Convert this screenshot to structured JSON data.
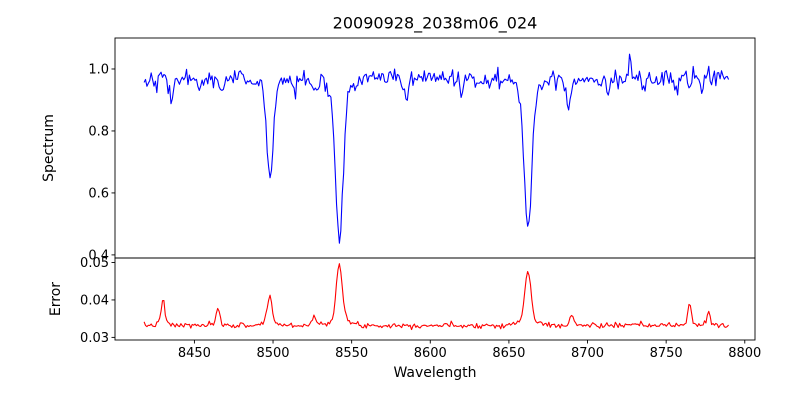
{
  "figure": {
    "title": "20090928_2038m06_024",
    "xlabel": "Wavelength",
    "background_color": "#ffffff",
    "axis_color": "#000000"
  },
  "chart_data": [
    {
      "type": "line",
      "series_name": "spectrum",
      "panel": "top",
      "ylabel": "Spectrum",
      "line_color": "#0000ff",
      "grid": false,
      "legend": false,
      "xlim": [
        8399.5,
        8806.5
      ],
      "ylim": [
        0.39,
        1.1
      ],
      "ytick_values": [
        0.4,
        0.6,
        0.8,
        1.0
      ],
      "ytick_labels": [
        "0.4",
        "0.6",
        "0.8",
        "1.0"
      ],
      "x_start": 8418,
      "x_end": 8790,
      "x_step": 0.9,
      "model": {
        "continuum": 0.97,
        "noise_sigma": 0.014,
        "seed": 42,
        "absorption_lines": [
          {
            "center": 8498.0,
            "depth": 0.33,
            "sigma": 1.9
          },
          {
            "center": 8542.1,
            "depth": 0.53,
            "sigma": 2.3
          },
          {
            "center": 8662.1,
            "depth": 0.49,
            "sigma": 2.3
          },
          {
            "center": 8435.0,
            "depth": 0.07,
            "sigma": 1.2
          },
          {
            "center": 8452.0,
            "depth": 0.04,
            "sigma": 1.0
          },
          {
            "center": 8468.0,
            "depth": 0.05,
            "sigma": 1.0
          },
          {
            "center": 8514.0,
            "depth": 0.05,
            "sigma": 1.0
          },
          {
            "center": 8527.0,
            "depth": 0.04,
            "sigma": 1.0
          },
          {
            "center": 8585.0,
            "depth": 0.06,
            "sigma": 1.2
          },
          {
            "center": 8620.0,
            "depth": 0.04,
            "sigma": 1.0
          },
          {
            "center": 8688.0,
            "depth": 0.09,
            "sigma": 1.3
          },
          {
            "center": 8713.0,
            "depth": 0.04,
            "sigma": 1.0
          },
          {
            "center": 8736.0,
            "depth": 0.04,
            "sigma": 1.0
          },
          {
            "center": 8757.0,
            "depth": 0.05,
            "sigma": 1.0
          },
          {
            "center": 8773.0,
            "depth": 0.04,
            "sigma": 1.0
          }
        ],
        "emission_spikes": [
          {
            "center": 8727.0,
            "amp": 0.08,
            "sigma": 0.7
          }
        ]
      },
      "key_points": [
        {
          "x": 8498,
          "y": 0.64
        },
        {
          "x": 8542,
          "y": 0.44
        },
        {
          "x": 8662,
          "y": 0.48
        },
        {
          "x": 8727,
          "y": 1.06
        }
      ]
    },
    {
      "type": "line",
      "series_name": "error",
      "panel": "bottom",
      "ylabel": "Error",
      "line_color": "#ff0000",
      "grid": false,
      "legend": false,
      "xlim": [
        8399.5,
        8806.5
      ],
      "ylim": [
        0.0293,
        0.0512
      ],
      "ytick_values": [
        0.03,
        0.04,
        0.05
      ],
      "ytick_labels": [
        "0.03",
        "0.04",
        "0.05"
      ],
      "xtick_values": [
        8450,
        8500,
        8550,
        8600,
        8650,
        8700,
        8750,
        8800
      ],
      "xtick_labels": [
        "8450",
        "8500",
        "8550",
        "8600",
        "8650",
        "8700",
        "8750",
        "8800"
      ],
      "x_start": 8418,
      "x_end": 8790,
      "x_step": 0.9,
      "model": {
        "baseline": 0.0332,
        "noise_sigma": 0.00035,
        "seed": 7,
        "peaks": [
          {
            "center": 8430.0,
            "amp": 0.0068,
            "sigma": 1.1
          },
          {
            "center": 8465.0,
            "amp": 0.0045,
            "sigma": 1.0
          },
          {
            "center": 8497.8,
            "amp": 0.0078,
            "sigma": 1.5
          },
          {
            "center": 8526.0,
            "amp": 0.0028,
            "sigma": 1.0
          },
          {
            "center": 8542.1,
            "amp": 0.0163,
            "sigma": 1.9
          },
          {
            "center": 8662.1,
            "amp": 0.0145,
            "sigma": 1.9
          },
          {
            "center": 8690.0,
            "amp": 0.0028,
            "sigma": 1.0
          },
          {
            "center": 8765.0,
            "amp": 0.0062,
            "sigma": 1.0
          },
          {
            "center": 8777.0,
            "amp": 0.004,
            "sigma": 0.9
          }
        ]
      },
      "key_points": [
        {
          "x": 8542,
          "y": 0.05
        },
        {
          "x": 8662,
          "y": 0.048
        },
        {
          "x": 8498,
          "y": 0.041
        },
        {
          "x": 8430,
          "y": 0.04
        },
        {
          "x": 8765,
          "y": 0.04
        }
      ]
    }
  ]
}
